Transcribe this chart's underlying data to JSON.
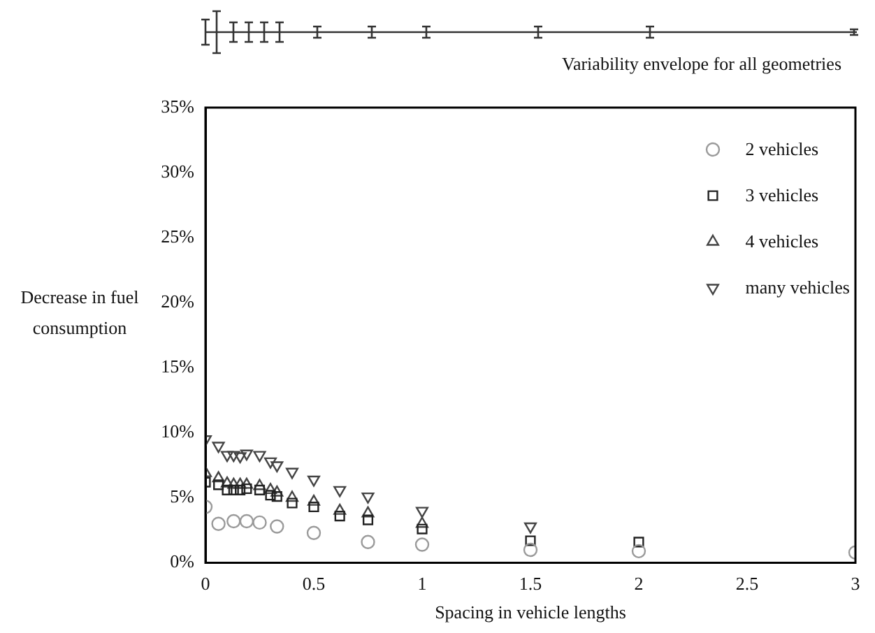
{
  "chart_data": {
    "type": "scatter",
    "xlabel": "Spacing in vehicle lengths",
    "ylabel": "Decrease in fuel consumption",
    "annotations": [
      "Variability envelope for all geometries"
    ],
    "xlim": [
      0,
      3
    ],
    "xticks": [
      0,
      0.5,
      1,
      1.5,
      2,
      2.5,
      3
    ],
    "ylim": [
      0,
      35
    ],
    "yticks": [
      {
        "value": 0,
        "label": "0%"
      },
      {
        "value": 5,
        "label": "5%"
      },
      {
        "value": 10,
        "label": "10%"
      },
      {
        "value": 15,
        "label": "15%"
      },
      {
        "value": 20,
        "label": "20%"
      },
      {
        "value": 25,
        "label": "25%"
      },
      {
        "value": 30,
        "label": "30%"
      },
      {
        "value": 35,
        "label": "35%"
      }
    ],
    "grid": false,
    "legend": "top right",
    "series": [
      {
        "name": "2 vehicles",
        "color": "#9a9a9a",
        "marker": "circle",
        "x": [
          0,
          0.06,
          0.13,
          0.19,
          0.25,
          0.33,
          0.5,
          0.75,
          1,
          1.5,
          2,
          3
        ],
        "values": [
          4.3,
          3.0,
          3.2,
          3.2,
          3.1,
          2.8,
          2.3,
          1.6,
          1.4,
          1.0,
          0.9,
          0.8
        ]
      },
      {
        "name": "3 vehicles",
        "color": "#222222",
        "marker": "square",
        "x": [
          0,
          0.06,
          0.1,
          0.13,
          0.16,
          0.19,
          0.25,
          0.3,
          0.33,
          0.4,
          0.5,
          0.62,
          0.75,
          1,
          1.5,
          2
        ],
        "values": [
          6.2,
          6.0,
          5.6,
          5.6,
          5.6,
          5.7,
          5.6,
          5.2,
          5.1,
          4.6,
          4.3,
          3.6,
          3.3,
          2.6,
          1.7,
          1.6
        ]
      },
      {
        "name": "4 vehicles",
        "color": "#444444",
        "marker": "triangle",
        "x": [
          0,
          0.06,
          0.1,
          0.13,
          0.16,
          0.19,
          0.25,
          0.3,
          0.33,
          0.4,
          0.5,
          0.62,
          0.75,
          1
        ],
        "values": [
          6.9,
          6.5,
          6.1,
          6.0,
          6.0,
          6.0,
          5.9,
          5.6,
          5.4,
          5.0,
          4.7,
          4.0,
          3.8,
          3.0
        ]
      },
      {
        "name": "many vehicles",
        "color": "#444444",
        "marker": "triangle-down",
        "x": [
          0,
          0.06,
          0.1,
          0.13,
          0.16,
          0.19,
          0.25,
          0.3,
          0.33,
          0.4,
          0.5,
          0.62,
          0.75,
          1,
          1.5
        ],
        "values": [
          9.5,
          9.0,
          8.3,
          8.3,
          8.2,
          8.4,
          8.3,
          7.8,
          7.5,
          7.0,
          6.4,
          5.6,
          5.1,
          4.0,
          2.8
        ]
      }
    ]
  }
}
